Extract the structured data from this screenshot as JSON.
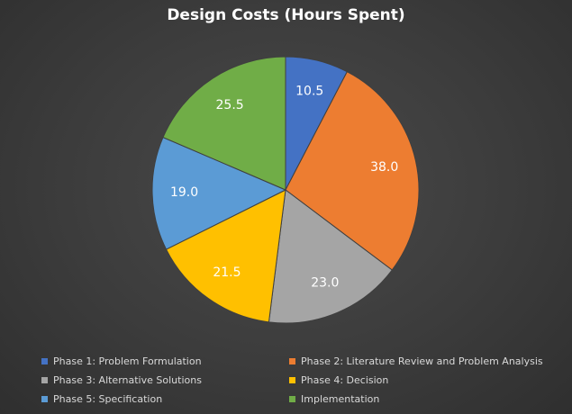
{
  "chart_data": {
    "type": "pie",
    "title": "Design Costs (Hours Spent)",
    "categories": [
      "Phase 1: Problem Formulation",
      "Phase 2: Literature Review and Problem Analysis",
      "Phase 3: Alternative Solutions",
      "Phase 4: Decision",
      "Phase 5: Specification",
      "Implementation"
    ],
    "values": [
      10.5,
      38.0,
      23.0,
      21.5,
      19.0,
      25.5
    ],
    "value_labels": [
      "10.5",
      "38.0",
      "23.0",
      "21.5",
      "19.0",
      "25.5"
    ],
    "colors": [
      "#4472c4",
      "#ed7d31",
      "#a5a5a5",
      "#ffc000",
      "#5b9bd5",
      "#70ad47"
    ],
    "legend_position": "bottom"
  }
}
